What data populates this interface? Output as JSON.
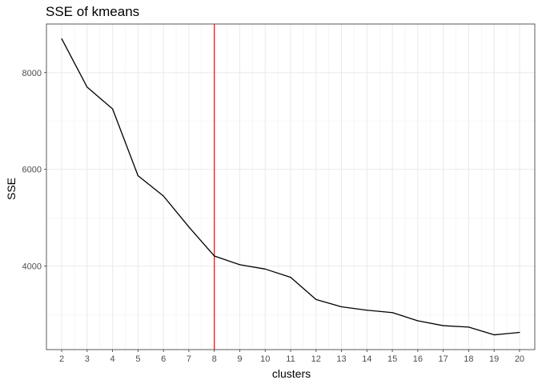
{
  "chart_data": {
    "type": "line",
    "title": "SSE of kmeans",
    "xlabel": "clusters",
    "ylabel": "SSE",
    "x": [
      2,
      3,
      4,
      5,
      6,
      7,
      8,
      9,
      10,
      11,
      12,
      13,
      14,
      15,
      16,
      17,
      18,
      19,
      20
    ],
    "x_tick_labels": [
      "2",
      "3",
      "4",
      "5",
      "6",
      "7",
      "8",
      "9",
      "10",
      "11",
      "12",
      "13",
      "14",
      "15",
      "16",
      "17",
      "18",
      "19",
      "20"
    ],
    "series": [
      {
        "values": [
          8700,
          7700,
          7250,
          5870,
          5450,
          4810,
          4210,
          4030,
          3940,
          3770,
          3310,
          3160,
          3090,
          3040,
          2870,
          2770,
          2740,
          2580,
          2630
        ]
      }
    ],
    "y_ticks": [
      4000,
      6000,
      8000
    ],
    "y_tick_labels": [
      "4000",
      "6000",
      "8000"
    ],
    "xlim": [
      1.4,
      20.6
    ],
    "ylim": [
      2275,
      9005
    ],
    "vline": {
      "x": 8,
      "color": "#ff0000"
    },
    "line_color": "#000000",
    "grid": true,
    "legend": "none"
  }
}
